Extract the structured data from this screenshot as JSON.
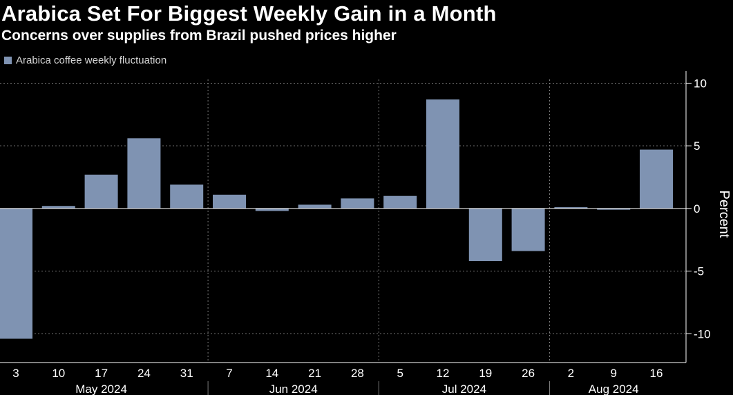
{
  "title": "Arabica Set For Biggest Weekly Gain in a Month",
  "subtitle": "Concerns over supplies from Brazil pushed prices higher",
  "legend": {
    "label": "Arabica coffee weekly fluctuation"
  },
  "colors": {
    "bar": "#7f93b2",
    "grid": "#7a7a7a",
    "background": "#000000"
  },
  "chart_data": {
    "type": "bar",
    "title": "Arabica Set For Biggest Weekly Gain in a Month",
    "subtitle": "Concerns over supplies from Brazil pushed prices higher",
    "ylabel": "Percent",
    "xlabel": "",
    "ylim": [
      -12.3,
      10.3
    ],
    "yticks": [
      10,
      5,
      0,
      -5,
      -10
    ],
    "ytick_labels": [
      "10",
      "5",
      "0",
      "-5",
      "-10"
    ],
    "grid": true,
    "legend_position": "top-left",
    "categories": [
      "3",
      "10",
      "17",
      "24",
      "31",
      "7",
      "14",
      "21",
      "28",
      "5",
      "12",
      "19",
      "26",
      "2",
      "9",
      "16"
    ],
    "months": [
      {
        "label": "May 2024",
        "start": 0,
        "end": 4
      },
      {
        "label": "Jun 2024",
        "start": 5,
        "end": 8
      },
      {
        "label": "Jul 2024",
        "start": 9,
        "end": 12
      },
      {
        "label": "Aug 2024",
        "start": 13,
        "end": 15
      }
    ],
    "series": [
      {
        "name": "Arabica coffee weekly fluctuation",
        "values": [
          -10.4,
          0.2,
          2.7,
          5.6,
          1.9,
          1.1,
          -0.2,
          0.3,
          0.8,
          1.0,
          8.7,
          -4.2,
          -3.4,
          0.1,
          -0.1,
          4.7
        ]
      }
    ]
  }
}
